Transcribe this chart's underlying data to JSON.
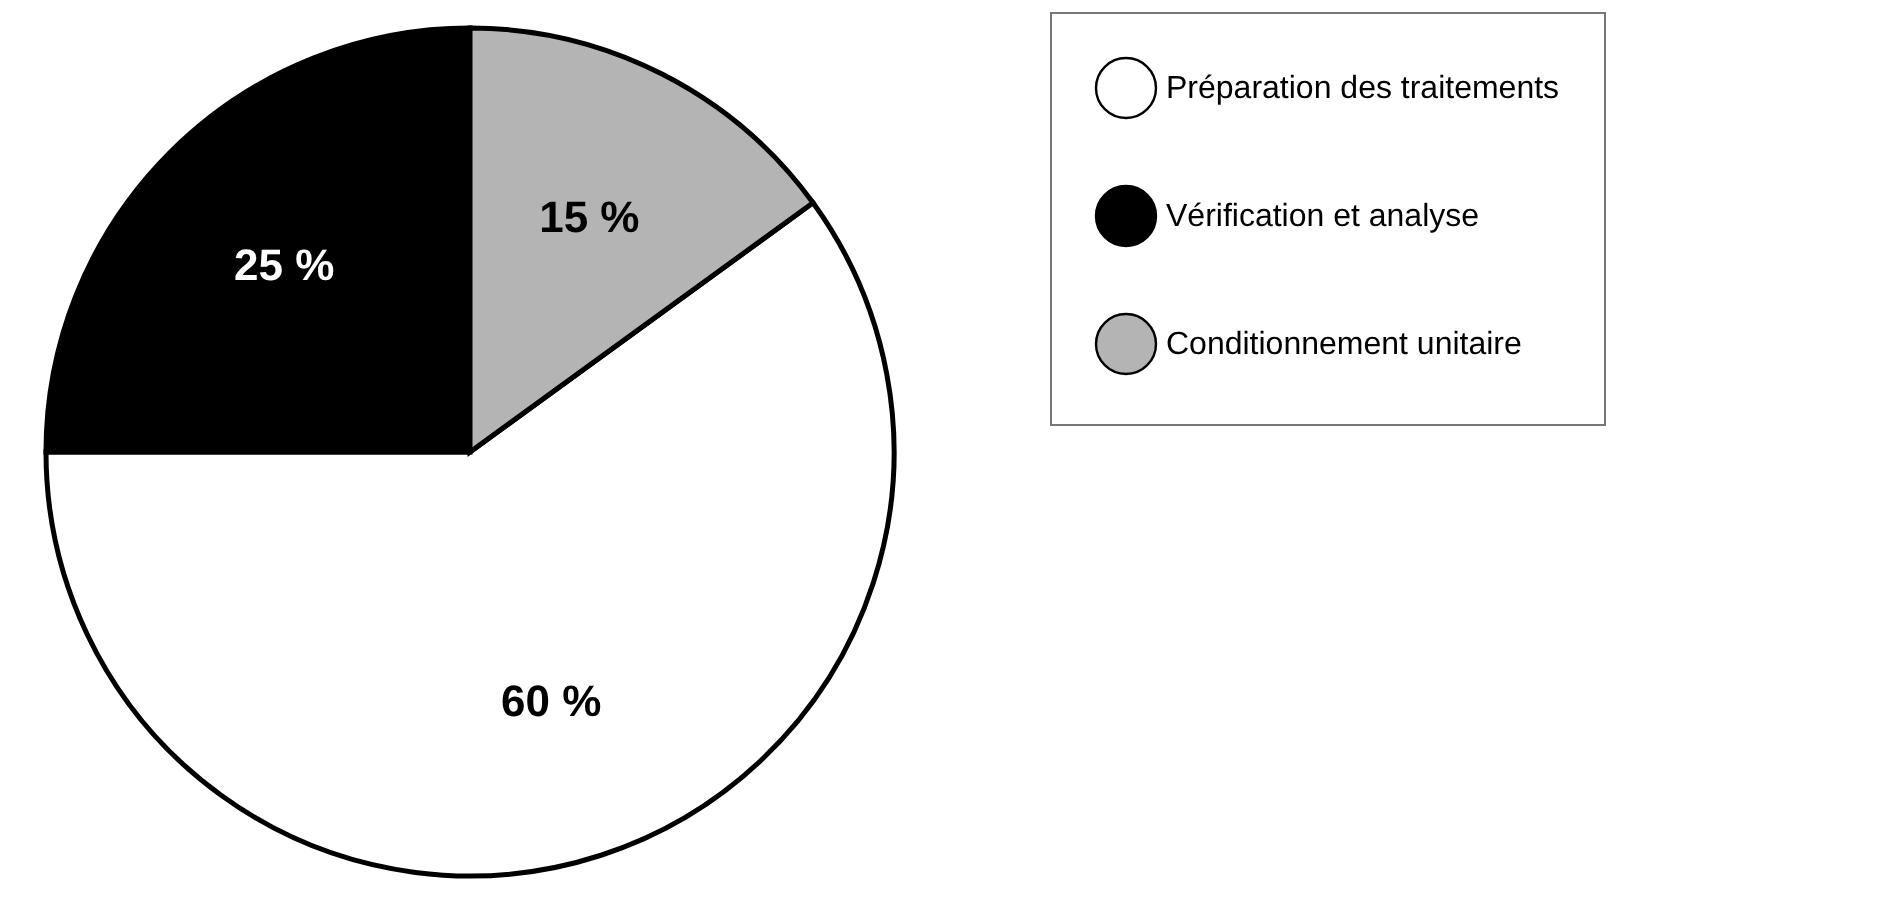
{
  "chart_data": {
    "type": "pie",
    "categories": [
      "Préparation des traitements",
      "Vérification et analyse",
      "Conditionnement unitaire"
    ],
    "values": [
      60,
      25,
      15
    ],
    "colors": [
      "#ffffff",
      "#000000",
      "#b4b4b4"
    ],
    "value_labels": [
      "60 %",
      "25 %",
      "15 %"
    ],
    "legend": "right"
  }
}
